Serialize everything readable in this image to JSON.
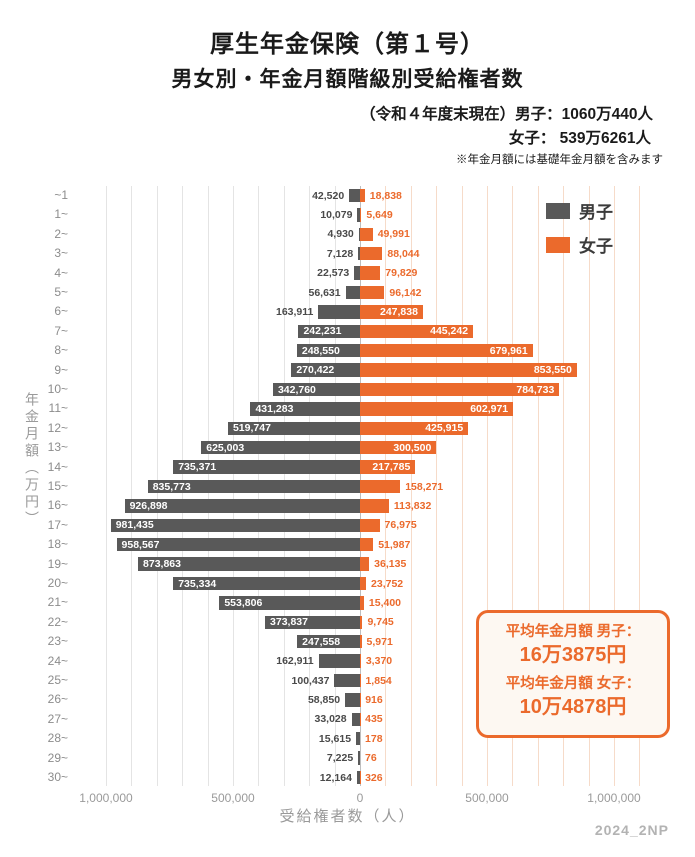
{
  "header": {
    "title1": "厚生年金保険（第１号）",
    "title2": "男女別・年金月額階級別受給権者数",
    "subtitle1": "（令和４年度末現在）男子：1060万440人",
    "subtitle2": "女子： 539万6261人",
    "note": "※年金月額には基礎年金月額を含みます"
  },
  "legend": {
    "items": [
      {
        "label": "男子",
        "color": "#595959"
      },
      {
        "label": "女子",
        "color": "#EB6A2C"
      }
    ]
  },
  "colors": {
    "men_bar": "#595959",
    "women_bar": "#EB6A2C",
    "men_label_outside": "#4a4a4a",
    "women_label_outside": "#EB6A2C",
    "label_inside": "#ffffff",
    "grid_left": "#e4e4e4",
    "grid_right": "#f6dbc9",
    "zero_line": "#bdbdbd"
  },
  "chart_data": {
    "type": "bar",
    "orientation": "horizontal-diverging",
    "title": "厚生年金保険（第１号） 男女別・年金月額階級別受給権者数",
    "xlabel": "受給権者数（人）",
    "ylabel": "年金月額（万円）",
    "grid": true,
    "grid_step": 100000,
    "xlim_left": 1000000,
    "xlim_right": 1100000,
    "x_ticks": [
      {
        "v": -1000000,
        "label": "1,000,000"
      },
      {
        "v": -500000,
        "label": "500,000"
      },
      {
        "v": 0,
        "label": "0"
      },
      {
        "v": 500000,
        "label": "500,000"
      },
      {
        "v": 1000000,
        "label": "1,000,000"
      }
    ],
    "categories": [
      "~1",
      "1~",
      "2~",
      "3~",
      "4~",
      "5~",
      "6~",
      "7~",
      "8~",
      "9~",
      "10~",
      "11~",
      "12~",
      "13~",
      "14~",
      "15~",
      "16~",
      "17~",
      "18~",
      "19~",
      "20~",
      "21~",
      "22~",
      "23~",
      "24~",
      "25~",
      "26~",
      "27~",
      "28~",
      "29~",
      "30~"
    ],
    "series": [
      {
        "name": "男子",
        "side": "left",
        "values": [
          42520,
          10079,
          4930,
          7128,
          22573,
          56631,
          163911,
          242231,
          248550,
          270422,
          342760,
          431283,
          519747,
          625003,
          735371,
          835773,
          926898,
          981435,
          958567,
          873863,
          735334,
          553806,
          373837,
          247558,
          162911,
          100437,
          58850,
          33028,
          15615,
          7225,
          12164
        ]
      },
      {
        "name": "女子",
        "side": "right",
        "values": [
          18838,
          5649,
          49991,
          88044,
          79829,
          96142,
          247838,
          445242,
          679961,
          853550,
          784733,
          602971,
          425915,
          300500,
          217785,
          158271,
          113832,
          76975,
          51987,
          36135,
          23752,
          15400,
          9745,
          5971,
          3370,
          1854,
          916,
          435,
          178,
          76,
          326
        ]
      }
    ]
  },
  "annotation": {
    "men_label": "平均年金月額 男子：",
    "men_value": "16万3875円",
    "women_label": "平均年金月額 女子：",
    "women_value": "10万4878円"
  },
  "footer": "2024_2NP"
}
